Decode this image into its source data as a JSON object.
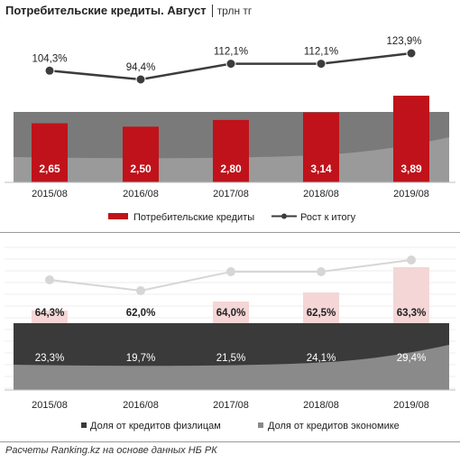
{
  "header": {
    "title": "Потребительские кредиты. Август",
    "unit": "трлн тг"
  },
  "footer": {
    "source": "Расчеты Ranking.kz на основе данных НБ РК"
  },
  "colors": {
    "bar_red": "#c0121a",
    "bar_red_light": "#f4d6d6",
    "growth_line": "#3c3c3c",
    "growth_line_light": "#d6d6d6",
    "area_dark": "#3a3a3a",
    "area_gray": "#8a8a8a",
    "area_mid": "#6b6b6b",
    "axis": "#bfbfbf"
  },
  "chart_data": [
    {
      "type": "bar",
      "categories": [
        "2015/08",
        "2016/08",
        "2017/08",
        "2018/08",
        "2019/08"
      ],
      "series": [
        {
          "name": "Потребительские кредиты",
          "values": [
            2.65,
            2.5,
            2.8,
            3.14,
            3.89
          ],
          "labels": [
            "2,65",
            "2,50",
            "2,80",
            "3,14",
            "3,89"
          ]
        },
        {
          "name": "Рост к итогу",
          "values": [
            104.3,
            94.4,
            112.1,
            112.1,
            123.9
          ],
          "labels": [
            "104,3%",
            "94,4%",
            "112,1%",
            "112,1%",
            "123,9%"
          ]
        }
      ],
      "legend": [
        "Потребительские кредиты",
        "Рост к итогу"
      ],
      "legend_position": "bottom",
      "grid": false
    },
    {
      "type": "area",
      "categories": [
        "2015/08",
        "2016/08",
        "2017/08",
        "2018/08",
        "2019/08"
      ],
      "series": [
        {
          "name": "Доля от кредитов физлицам",
          "values": [
            64.3,
            62.0,
            64.0,
            62.5,
            63.3
          ],
          "labels": [
            "64,3%",
            "62,0%",
            "64,0%",
            "62,5%",
            "63,3%"
          ]
        },
        {
          "name": "Доля от кредитов экономике",
          "values": [
            23.3,
            19.7,
            21.5,
            24.1,
            29.4
          ],
          "labels": [
            "23,3%",
            "19,7%",
            "21,5%",
            "24,1%",
            "29,4%"
          ]
        }
      ],
      "legend": [
        "Доля от кредитов физлицам",
        "Доля от кредитов экономике"
      ],
      "legend_position": "bottom",
      "grid": true
    }
  ]
}
